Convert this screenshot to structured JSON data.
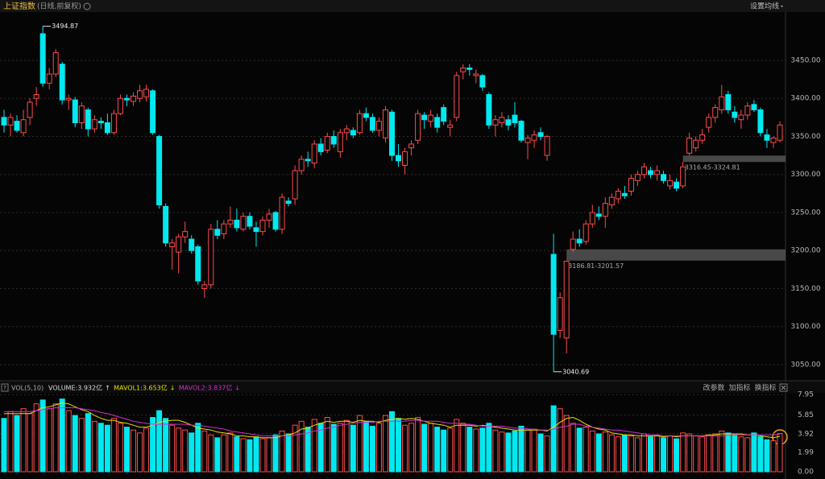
{
  "header": {
    "title": "上证指数",
    "subtitle": "(日线,前复权)",
    "settings": "设置均线"
  },
  "indicator_bar": {
    "help": "?",
    "name": "VOL(5,10)",
    "items": [
      {
        "text": "VOLUME:3.932亿",
        "arrow": "↑"
      },
      {
        "text": "MAVOL1:3.653亿",
        "arrow": "↓"
      },
      {
        "text": "MAVOL2:3.837亿",
        "arrow": "↓"
      }
    ],
    "buttons": [
      "改参数",
      "加指标",
      "换指标"
    ]
  },
  "chart_data": {
    "type": "candlestick",
    "up_color": "#ff4a4a",
    "down_color": "#00e8f0",
    "grid": true,
    "ylim": [
      3032,
      3514
    ],
    "yticks": [
      {
        "value": 3450,
        "label": "3450.00"
      },
      {
        "value": 3400,
        "label": "3400.00"
      },
      {
        "value": 3350,
        "label": "3350.00"
      },
      {
        "value": 3300,
        "label": "3300.00"
      },
      {
        "value": 3250,
        "label": "3250.00"
      },
      {
        "value": 3200,
        "label": "3200.00"
      },
      {
        "value": 3150,
        "label": "3150.00"
      },
      {
        "value": 3100,
        "label": "3100.00"
      },
      {
        "value": 3050,
        "label": "3050.00"
      }
    ],
    "ohlc": [
      [
        3375,
        3385,
        3355,
        3365
      ],
      [
        3365,
        3380,
        3350,
        3375
      ],
      [
        3370,
        3378,
        3355,
        3358
      ],
      [
        3355,
        3385,
        3350,
        3372
      ],
      [
        3375,
        3400,
        3365,
        3395
      ],
      [
        3400,
        3415,
        3390,
        3405
      ],
      [
        3485,
        3494.87,
        3415,
        3420
      ],
      [
        3420,
        3440,
        3412,
        3432
      ],
      [
        3432,
        3465,
        3428,
        3460
      ],
      [
        3445,
        3448,
        3392,
        3398
      ],
      [
        3398,
        3405,
        3385,
        3400
      ],
      [
        3398,
        3402,
        3362,
        3368
      ],
      [
        3368,
        3395,
        3360,
        3390
      ],
      [
        3385,
        3388,
        3350,
        3360
      ],
      [
        3360,
        3378,
        3355,
        3372
      ],
      [
        3370,
        3375,
        3360,
        3368
      ],
      [
        3368,
        3380,
        3352,
        3355
      ],
      [
        3355,
        3385,
        3352,
        3380
      ],
      [
        3380,
        3405,
        3378,
        3400
      ],
      [
        3400,
        3405,
        3390,
        3398
      ],
      [
        3396,
        3408,
        3390,
        3403
      ],
      [
        3400,
        3418,
        3395,
        3410
      ],
      [
        3402,
        3418,
        3396,
        3412
      ],
      [
        3410,
        3412,
        3352,
        3355
      ],
      [
        3350,
        3352,
        3255,
        3260
      ],
      [
        3258,
        3262,
        3205,
        3210
      ],
      [
        3205,
        3215,
        3175,
        3210
      ],
      [
        3198,
        3222,
        3170,
        3218
      ],
      [
        3218,
        3238,
        3210,
        3225
      ],
      [
        3215,
        3220,
        3196,
        3200
      ],
      [
        3205,
        3208,
        3155,
        3160
      ],
      [
        3150,
        3160,
        3138,
        3155
      ],
      [
        3155,
        3235,
        3150,
        3228
      ],
      [
        3228,
        3240,
        3215,
        3220
      ],
      [
        3222,
        3240,
        3215,
        3235
      ],
      [
        3235,
        3258,
        3230,
        3240
      ],
      [
        3240,
        3255,
        3225,
        3230
      ],
      [
        3228,
        3250,
        3225,
        3245
      ],
      [
        3245,
        3250,
        3228,
        3232
      ],
      [
        3230,
        3238,
        3205,
        3225
      ],
      [
        3225,
        3245,
        3220,
        3240
      ],
      [
        3240,
        3255,
        3230,
        3248
      ],
      [
        3250,
        3252,
        3225,
        3228
      ],
      [
        3228,
        3275,
        3222,
        3270
      ],
      [
        3265,
        3270,
        3258,
        3262
      ],
      [
        3268,
        3312,
        3260,
        3305
      ],
      [
        3305,
        3325,
        3300,
        3320
      ],
      [
        3320,
        3330,
        3310,
        3318
      ],
      [
        3315,
        3345,
        3308,
        3340
      ],
      [
        3340,
        3348,
        3325,
        3330
      ],
      [
        3332,
        3355,
        3328,
        3350
      ],
      [
        3350,
        3358,
        3335,
        3340
      ],
      [
        3330,
        3360,
        3322,
        3355
      ],
      [
        3355,
        3365,
        3345,
        3360
      ],
      [
        3358,
        3362,
        3348,
        3352
      ],
      [
        3355,
        3385,
        3352,
        3380
      ],
      [
        3380,
        3388,
        3370,
        3375
      ],
      [
        3375,
        3380,
        3355,
        3358
      ],
      [
        3358,
        3375,
        3350,
        3370
      ],
      [
        3348,
        3390,
        3342,
        3385
      ],
      [
        3382,
        3385,
        3318,
        3325
      ],
      [
        3325,
        3340,
        3310,
        3318
      ],
      [
        3312,
        3335,
        3300,
        3330
      ],
      [
        3335,
        3345,
        3325,
        3340
      ],
      [
        3345,
        3385,
        3340,
        3380
      ],
      [
        3378,
        3382,
        3360,
        3372
      ],
      [
        3370,
        3385,
        3362,
        3378
      ],
      [
        3375,
        3380,
        3355,
        3362
      ],
      [
        3388,
        3392,
        3365,
        3370
      ],
      [
        3362,
        3372,
        3350,
        3365
      ],
      [
        3375,
        3435,
        3370,
        3430
      ],
      [
        3435,
        3445,
        3425,
        3440
      ],
      [
        3440,
        3445,
        3430,
        3438
      ],
      [
        3430,
        3438,
        3420,
        3432
      ],
      [
        3430,
        3432,
        3410,
        3415
      ],
      [
        3405,
        3408,
        3360,
        3365
      ],
      [
        3365,
        3378,
        3350,
        3372
      ],
      [
        3368,
        3382,
        3362,
        3375
      ],
      [
        3372,
        3378,
        3358,
        3365
      ],
      [
        3378,
        3395,
        3362,
        3368
      ],
      [
        3370,
        3372,
        3342,
        3345
      ],
      [
        3342,
        3352,
        3320,
        3348
      ],
      [
        3345,
        3358,
        3335,
        3352
      ],
      [
        3355,
        3362,
        3345,
        3350
      ],
      [
        3325,
        3352,
        3318,
        3350
      ],
      [
        3195,
        3222,
        3040.69,
        3090
      ],
      [
        3095,
        3145,
        3085,
        3138
      ],
      [
        3085,
        3186.81,
        3065,
        3186
      ],
      [
        3201.57,
        3225,
        3198,
        3215
      ],
      [
        3215,
        3228,
        3205,
        3210
      ],
      [
        3212,
        3240,
        3208,
        3235
      ],
      [
        3235,
        3260,
        3230,
        3250
      ],
      [
        3248,
        3258,
        3240,
        3245
      ],
      [
        3245,
        3270,
        3230,
        3262
      ],
      [
        3260,
        3275,
        3255,
        3270
      ],
      [
        3268,
        3282,
        3262,
        3278
      ],
      [
        3275,
        3285,
        3268,
        3272
      ],
      [
        3278,
        3300,
        3272,
        3295
      ],
      [
        3292,
        3305,
        3285,
        3300
      ],
      [
        3300,
        3315,
        3295,
        3310
      ],
      [
        3305,
        3310,
        3295,
        3300
      ],
      [
        3300,
        3312,
        3292,
        3305
      ],
      [
        3300,
        3305,
        3288,
        3292
      ],
      [
        3285,
        3300,
        3280,
        3292
      ],
      [
        3290,
        3295,
        3278,
        3282
      ],
      [
        3285,
        3316.45,
        3282,
        3310
      ],
      [
        3328,
        3355,
        3324.81,
        3348
      ],
      [
        3335,
        3350,
        3330,
        3345
      ],
      [
        3345,
        3360,
        3340,
        3352
      ],
      [
        3362,
        3380,
        3355,
        3375
      ],
      [
        3375,
        3392,
        3368,
        3388
      ],
      [
        3385,
        3418,
        3380,
        3402
      ],
      [
        3405,
        3410,
        3380,
        3385
      ],
      [
        3382,
        3390,
        3368,
        3375
      ],
      [
        3372,
        3385,
        3360,
        3378
      ],
      [
        3378,
        3395,
        3372,
        3390
      ],
      [
        3392,
        3398,
        3382,
        3385
      ],
      [
        3385,
        3388,
        3350,
        3355
      ],
      [
        3352,
        3360,
        3335,
        3345
      ],
      [
        3342,
        3350,
        3335,
        3348
      ],
      [
        3345,
        3370,
        3342,
        3365
      ]
    ],
    "gaps": [
      {
        "low": 3316.45,
        "high": 3324.81,
        "label": "3316.45-3324.81"
      },
      {
        "low": 3186.81,
        "high": 3201.57,
        "label": "3186.81-3201.57"
      }
    ],
    "vlim": [
      0,
      8.3
    ],
    "vticks": [
      7.95,
      5.85,
      3.92,
      1.99,
      {
        "value": 0,
        "label": "0.00"
      }
    ],
    "volume": [
      5.5,
      6.2,
      5.8,
      6.5,
      6.0,
      7.0,
      7.4,
      6.5,
      7.0,
      7.5,
      6.3,
      5.8,
      5.5,
      6.0,
      5.2,
      5.0,
      4.8,
      5.5,
      5.0,
      4.6,
      4.3,
      4.0,
      4.5,
      5.6,
      6.3,
      5.5,
      4.8,
      4.5,
      4.3,
      4.0,
      5.0,
      4.2,
      3.8,
      3.5,
      3.8,
      4.0,
      3.6,
      3.4,
      3.3,
      3.6,
      3.4,
      3.5,
      3.8,
      4.2,
      3.9,
      4.8,
      5.2,
      4.6,
      5.4,
      5.0,
      5.6,
      4.9,
      5.0,
      5.3,
      4.8,
      5.8,
      5.2,
      4.7,
      5.0,
      5.8,
      6.2,
      5.5,
      4.8,
      5.0,
      5.6,
      4.9,
      5.0,
      4.6,
      4.3,
      4.5,
      5.4,
      5.0,
      4.6,
      4.4,
      4.5,
      5.0,
      4.3,
      4.1,
      4.0,
      4.2,
      4.7,
      4.3,
      4.4,
      3.9,
      3.7,
      6.8,
      6.5,
      5.8,
      5.0,
      4.5,
      4.6,
      4.2,
      3.9,
      4.1,
      3.8,
      3.6,
      3.8,
      3.7,
      3.5,
      3.9,
      3.6,
      3.8,
      3.5,
      3.7,
      3.4,
      4.0,
      3.9,
      3.7,
      3.6,
      3.8,
      3.9,
      4.2,
      4.0,
      3.8,
      3.6,
      3.5,
      4.0,
      3.6,
      3.3,
      3.2,
      3.932
    ],
    "mavol1_color": "#e8e000",
    "mavol2_color": "#d030d0",
    "mavol1": [
      6.0,
      6.0,
      6.0,
      6.0,
      6.0,
      6.3,
      6.6,
      6.7,
      6.9,
      7.1,
      7.0,
      6.7,
      6.4,
      6.2,
      5.8,
      5.5,
      5.3,
      5.3,
      5.1,
      5.0,
      4.8,
      4.6,
      4.6,
      4.8,
      5.1,
      5.2,
      5.3,
      5.3,
      5.1,
      4.8,
      4.5,
      4.4,
      4.3,
      4.1,
      4.0,
      3.9,
      3.7,
      3.7,
      3.6,
      3.6,
      3.5,
      3.5,
      3.5,
      3.7,
      3.8,
      4.0,
      4.4,
      4.5,
      4.8,
      5.0,
      5.2,
      5.1,
      5.2,
      5.2,
      5.1,
      5.3,
      5.2,
      5.2,
      5.1,
      5.3,
      5.4,
      5.5,
      5.4,
      5.5,
      5.4,
      5.2,
      5.0,
      4.9,
      4.8,
      4.6,
      4.8,
      4.8,
      4.8,
      4.7,
      4.8,
      4.7,
      4.6,
      4.5,
      4.4,
      4.3,
      4.3,
      4.3,
      4.3,
      4.3,
      4.2,
      4.6,
      5.1,
      5.5,
      5.6,
      5.3,
      4.9,
      4.6,
      4.4,
      4.3,
      4.0,
      3.9,
      3.8,
      3.8,
      3.7,
      3.7,
      3.7,
      3.7,
      3.6,
      3.7,
      3.6,
      3.7,
      3.7,
      3.7,
      3.7,
      3.8,
      3.8,
      3.9,
      3.9,
      3.9,
      3.9,
      3.8,
      3.8,
      3.7,
      3.6,
      3.5,
      3.653
    ],
    "mavol2": [
      6.2,
      6.2,
      6.2,
      6.2,
      6.2,
      6.3,
      6.4,
      6.5,
      6.6,
      6.6,
      6.6,
      6.6,
      6.5,
      6.4,
      6.3,
      6.1,
      6.0,
      5.8,
      5.6,
      5.4,
      5.2,
      5.1,
      5.0,
      4.9,
      4.9,
      4.9,
      4.9,
      4.9,
      4.9,
      4.8,
      4.8,
      4.7,
      4.6,
      4.5,
      4.4,
      4.2,
      4.1,
      4.0,
      3.9,
      3.8,
      3.7,
      3.7,
      3.7,
      3.7,
      3.7,
      3.8,
      3.9,
      4.0,
      4.2,
      4.3,
      4.5,
      4.6,
      4.8,
      4.9,
      5.0,
      5.1,
      5.1,
      5.1,
      5.2,
      5.2,
      5.2,
      5.2,
      5.2,
      5.3,
      5.3,
      5.2,
      5.2,
      5.2,
      5.1,
      5.0,
      5.0,
      4.9,
      4.9,
      4.8,
      4.7,
      4.7,
      4.7,
      4.7,
      4.6,
      4.5,
      4.5,
      4.4,
      4.4,
      4.3,
      4.3,
      4.4,
      4.6,
      4.7,
      4.9,
      4.9,
      4.7,
      4.6,
      4.5,
      4.4,
      4.3,
      4.3,
      4.2,
      4.1,
      4.0,
      3.9,
      3.8,
      3.8,
      3.7,
      3.7,
      3.7,
      3.7,
      3.7,
      3.7,
      3.7,
      3.7,
      3.7,
      3.7,
      3.8,
      3.8,
      3.8,
      3.8,
      3.8,
      3.8,
      3.8,
      3.8,
      3.837
    ]
  }
}
